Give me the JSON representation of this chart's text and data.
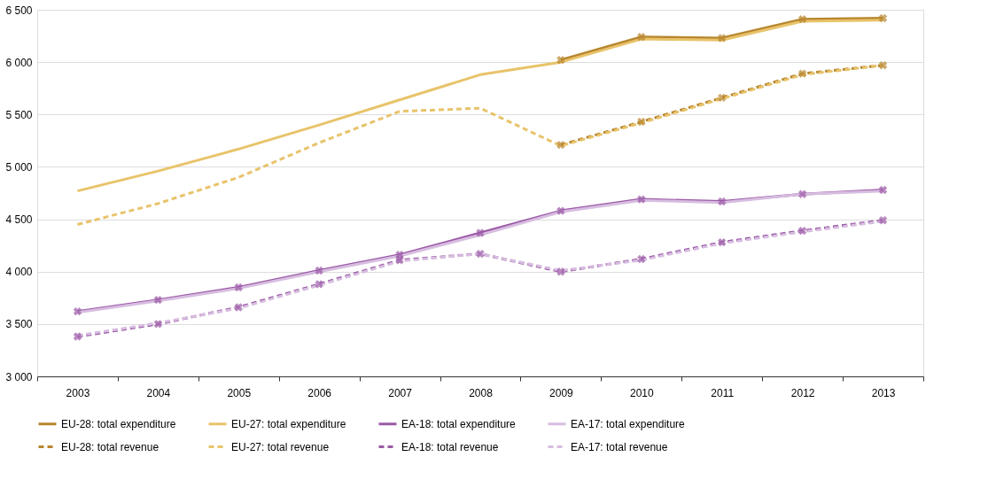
{
  "chart_data": {
    "type": "line",
    "categories": [
      "2003",
      "2004",
      "2005",
      "2006",
      "2007",
      "2008",
      "2009",
      "2010",
      "2011",
      "2012",
      "2013"
    ],
    "ylim": [
      3000,
      6500
    ],
    "yticks": [
      {
        "value": 3000,
        "label": "3 000"
      },
      {
        "value": 3500,
        "label": "3 500"
      },
      {
        "value": 4000,
        "label": "4 000"
      },
      {
        "value": 4500,
        "label": "4 500"
      },
      {
        "value": 5000,
        "label": "5 000"
      },
      {
        "value": 5500,
        "label": "5 500"
      },
      {
        "value": 6000,
        "label": "6 000"
      },
      {
        "value": 6500,
        "label": "6 500"
      }
    ],
    "grid": "y",
    "legend": "bottom",
    "series": [
      {
        "name": "EU-28: total expenditure",
        "color": "#b8862e",
        "line_style": "solid",
        "marker": "cross",
        "values": [
          null,
          null,
          null,
          null,
          null,
          null,
          6020,
          6240,
          6230,
          6410,
          6420
        ]
      },
      {
        "name": "EU-27: total expenditure",
        "color": "#e8c36a",
        "line_style": "solid",
        "marker": "none",
        "values": [
          4770,
          4960,
          5170,
          5400,
          5640,
          5880,
          6000,
          6220,
          6210,
          6390,
          6400
        ]
      },
      {
        "name": "EA-18: total expenditure",
        "color": "#9b59a6",
        "line_style": "solid",
        "marker": "cross",
        "values": [
          3620,
          3730,
          3850,
          4010,
          4160,
          4370,
          4580,
          4690,
          4670,
          4740,
          4780
        ]
      },
      {
        "name": "EA-17: total expenditure",
        "color": "#d7bde0",
        "line_style": "solid",
        "marker": "none",
        "values": [
          3610,
          3720,
          3840,
          4000,
          4150,
          4350,
          4570,
          4680,
          4660,
          4740,
          4770
        ]
      },
      {
        "name": "EU-28: total revenue",
        "color": "#b8862e",
        "line_style": "dashed",
        "marker": "cross",
        "values": [
          null,
          null,
          null,
          null,
          null,
          null,
          5210,
          5430,
          5660,
          5890,
          5970
        ]
      },
      {
        "name": "EU-27: total revenue",
        "color": "#e8c36a",
        "line_style": "dashed",
        "marker": "none",
        "values": [
          4450,
          4650,
          4900,
          5230,
          5530,
          5560,
          5200,
          5420,
          5650,
          5880,
          5970
        ]
      },
      {
        "name": "EA-18: total revenue",
        "color": "#9b59a6",
        "line_style": "dashed",
        "marker": "cross",
        "values": [
          3380,
          3500,
          3660,
          3880,
          4110,
          4170,
          4000,
          4120,
          4280,
          4390,
          4490
        ]
      },
      {
        "name": "EA-17: total revenue",
        "color": "#d7bde0",
        "line_style": "dashed",
        "marker": "none",
        "values": [
          3390,
          3510,
          3650,
          3870,
          4100,
          4170,
          4010,
          4110,
          4270,
          4380,
          4480
        ]
      }
    ]
  }
}
